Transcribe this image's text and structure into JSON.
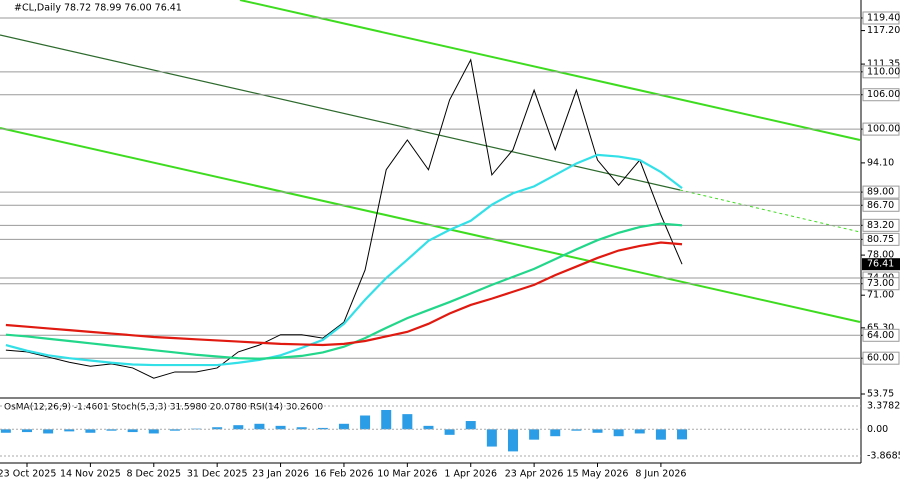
{
  "chart_data": [
    {
      "type": "line",
      "title": "#CL,Daily",
      "subtitle": "78.72 78.99 76.00 76.41",
      "categories": [
        null,
        "23 Oct 2025",
        null,
        null,
        "14 Nov 2025",
        null,
        null,
        "8 Dec 2025",
        null,
        null,
        "31 Dec 2025",
        null,
        null,
        "23 Jan 2026",
        null,
        null,
        "16 Feb 2026",
        null,
        null,
        "10 Mar 2026",
        null,
        null,
        "1 Apr 2026",
        null,
        null,
        "23 Apr 2026",
        null,
        null,
        "15 May 2026",
        null,
        null,
        "8 Jun 2026",
        null
      ],
      "series": [
        {
          "color": "#000000",
          "values": [
            61.4,
            61.1,
            60.2,
            59.3,
            58.6,
            59.0,
            58.3,
            56.5,
            57.6,
            57.6,
            58.3,
            61.1,
            62.3,
            64.1,
            64.1,
            63.5,
            66.3,
            75.4,
            92.9,
            98.1,
            92.9,
            105.1,
            112.1,
            92.0,
            96.4,
            106.8,
            96.4,
            106.8,
            94.6,
            90.2,
            94.6,
            85.0,
            76.41
          ]
        },
        {
          "color": "#33e0e8",
          "values": [
            62.3,
            61.3,
            60.5,
            60.0,
            59.6,
            59.2,
            58.9,
            58.8,
            58.8,
            58.8,
            58.8,
            59.2,
            59.7,
            60.5,
            61.8,
            63.2,
            66.0,
            70.2,
            74.0,
            77.2,
            80.5,
            82.4,
            84.0,
            86.8,
            88.8,
            90.0,
            92.0,
            94.0,
            95.5,
            95.2,
            94.6,
            92.5,
            89.7
          ]
        },
        {
          "color": "#22d68a",
          "values": [
            64.1,
            63.8,
            63.4,
            63.0,
            62.6,
            62.2,
            61.8,
            61.4,
            61.0,
            60.6,
            60.3,
            60.0,
            59.9,
            60.1,
            60.4,
            61.0,
            62.0,
            63.5,
            65.3,
            67.0,
            68.4,
            69.8,
            71.3,
            72.8,
            74.2,
            75.6,
            77.3,
            79.0,
            80.6,
            81.9,
            82.9,
            83.5,
            83.2
          ]
        },
        {
          "color": "#e01a10",
          "values": [
            65.8,
            65.5,
            65.2,
            64.9,
            64.6,
            64.3,
            64.0,
            63.7,
            63.5,
            63.3,
            63.1,
            62.9,
            62.7,
            62.5,
            62.4,
            62.3,
            62.5,
            63.0,
            63.8,
            64.6,
            66.0,
            67.8,
            69.3,
            70.4,
            71.6,
            72.8,
            74.5,
            76.0,
            77.5,
            78.8,
            79.6,
            80.2,
            79.9
          ]
        }
      ],
      "ylim": [
        53.05,
        122.54
      ],
      "yticks": [
        {
          "value": 119.4,
          "label": "119.40"
        },
        {
          "value": 117.2,
          "label": "117.20"
        },
        111.35,
        {
          "value": 110,
          "label": "110.00"
        },
        {
          "value": 106,
          "label": "106.00"
        },
        {
          "value": 100,
          "label": "100.00"
        },
        {
          "value": 94.1,
          "label": "94.10"
        },
        {
          "value": 89,
          "label": "89.00"
        },
        {
          "value": 86.7,
          "label": "86.70"
        },
        {
          "value": 83.2,
          "label": "83.20"
        },
        80.75,
        {
          "value": 78,
          "label": "78.00"
        },
        {
          "value": 74,
          "label": "74.00"
        },
        {
          "value": 73,
          "label": "73.00"
        },
        {
          "value": 71,
          "label": "71.00"
        },
        {
          "value": 65.3,
          "label": "65.30"
        },
        {
          "value": 64,
          "label": "64.00"
        },
        {
          "value": 60,
          "label": "60.00"
        },
        53.75
      ],
      "levels": [
        119.4,
        110,
        106,
        100,
        89,
        86.7,
        83.2,
        80.75,
        74,
        73,
        64,
        60
      ],
      "last_price": 76.41
    },
    {
      "type": "bar",
      "title": "OsMA(12,26,9) -1.4601 Stoch(5,3,3) 31.5980 20.0780 RSI(14) 30.2600",
      "color": "#2a9de6",
      "values": [
        -0.5,
        -0.4,
        -0.6,
        -0.3,
        -0.5,
        -0.2,
        -0.4,
        -0.6,
        -0.2,
        0.1,
        0.3,
        0.6,
        0.8,
        0.5,
        0.3,
        0.2,
        0.8,
        2.0,
        2.8,
        2.2,
        0.5,
        -0.8,
        1.2,
        -2.5,
        -3.2,
        -1.5,
        -1.0,
        -0.2,
        -0.5,
        -1.0,
        -0.6,
        -1.5,
        -1.46
      ],
      "ylim": [
        -3.8685,
        3.3782
      ],
      "yticks": [
        3.3782,
        {
          "value": 0,
          "label": "0.00"
        },
        -3.8685
      ]
    }
  ]
}
